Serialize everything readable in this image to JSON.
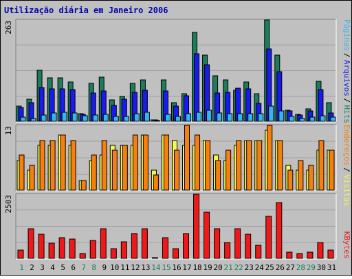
{
  "chart_data": [
    {
      "type": "bar",
      "title": "Utilização diária em Janeiro 2006",
      "ytick_label": "263",
      "ylim": [
        0,
        263
      ],
      "grid": true,
      "legend": "right",
      "categories": [
        "1",
        "2",
        "3",
        "4",
        "5",
        "6",
        "7",
        "8",
        "9",
        "10",
        "11",
        "12",
        "13",
        "14",
        "15",
        "16",
        "17",
        "18",
        "19",
        "20",
        "21",
        "22",
        "23",
        "24",
        "25",
        "26",
        "27",
        "28",
        "29",
        "30",
        "31"
      ],
      "weekend_days": [
        "1",
        "7",
        "8",
        "14",
        "15",
        "21",
        "22",
        "28",
        "29"
      ],
      "series": [
        {
          "name": "Hits",
          "color": "#1c7c5c",
          "values": [
            40,
            58,
            132,
            112,
            112,
            102,
            20,
            98,
            114,
            56,
            65,
            98,
            108,
            4,
            108,
            48,
            72,
            230,
            172,
            118,
            108,
            80,
            102,
            72,
            263,
            172,
            28,
            18,
            32,
            104,
            48
          ]
        },
        {
          "name": "Arquivos",
          "color": "#1a1aee",
          "values": [
            36,
            48,
            88,
            84,
            84,
            82,
            18,
            74,
            78,
            42,
            58,
            76,
            80,
            3,
            78,
            40,
            66,
            176,
            146,
            74,
            76,
            86,
            84,
            46,
            188,
            128,
            26,
            16,
            26,
            82,
            22
          ]
        },
        {
          "name": "Páginas",
          "color": "#33b5ef",
          "values": [
            10,
            8,
            16,
            22,
            24,
            22,
            14,
            16,
            18,
            12,
            12,
            20,
            24,
            2,
            18,
            12,
            20,
            24,
            28,
            22,
            20,
            20,
            20,
            20,
            40,
            26,
            12,
            8,
            10,
            14,
            10
          ]
        }
      ]
    },
    {
      "type": "bar",
      "ytick_label": "13",
      "ylim": [
        0,
        13
      ],
      "grid": true,
      "categories": [
        "1",
        "2",
        "3",
        "4",
        "5",
        "6",
        "7",
        "8",
        "9",
        "10",
        "11",
        "12",
        "13",
        "14",
        "15",
        "16",
        "17",
        "18",
        "19",
        "20",
        "21",
        "22",
        "23",
        "24",
        "25",
        "26",
        "27",
        "28",
        "29",
        "30",
        "31"
      ],
      "series": [
        {
          "name": "Visitas",
          "color": "#f8f84a",
          "values": [
            6,
            4,
            9,
            9,
            11,
            9,
            2,
            6,
            7,
            9,
            9,
            9,
            11,
            4,
            11,
            10,
            9,
            9,
            10,
            7,
            6,
            9,
            10,
            10,
            12,
            10,
            5,
            4,
            4,
            8,
            8
          ]
        },
        {
          "name": "Endereços",
          "color": "#f77f10",
          "values": [
            7,
            5,
            10,
            10,
            11,
            10,
            2,
            7,
            10,
            8,
            9,
            11,
            11,
            3,
            11,
            8,
            13,
            11,
            10,
            6,
            8,
            10,
            10,
            10,
            13,
            10,
            4,
            6,
            5,
            10,
            8
          ]
        }
      ]
    },
    {
      "type": "bar",
      "ytick_label": "2503",
      "ylim": [
        0,
        2503
      ],
      "grid": true,
      "categories": [
        "1",
        "2",
        "3",
        "4",
        "5",
        "6",
        "7",
        "8",
        "9",
        "10",
        "11",
        "12",
        "13",
        "14",
        "15",
        "16",
        "17",
        "18",
        "19",
        "20",
        "21",
        "22",
        "23",
        "24",
        "25",
        "26",
        "27",
        "28",
        "29",
        "30",
        "31"
      ],
      "series": [
        {
          "name": "KBytes",
          "color": "#f01818",
          "values": [
            330,
            1150,
            930,
            580,
            800,
            760,
            180,
            690,
            1150,
            380,
            650,
            970,
            1150,
            40,
            800,
            380,
            970,
            2503,
            1800,
            1150,
            620,
            1150,
            940,
            510,
            1630,
            2170,
            250,
            180,
            250,
            630,
            330
          ]
        }
      ]
    }
  ]
}
